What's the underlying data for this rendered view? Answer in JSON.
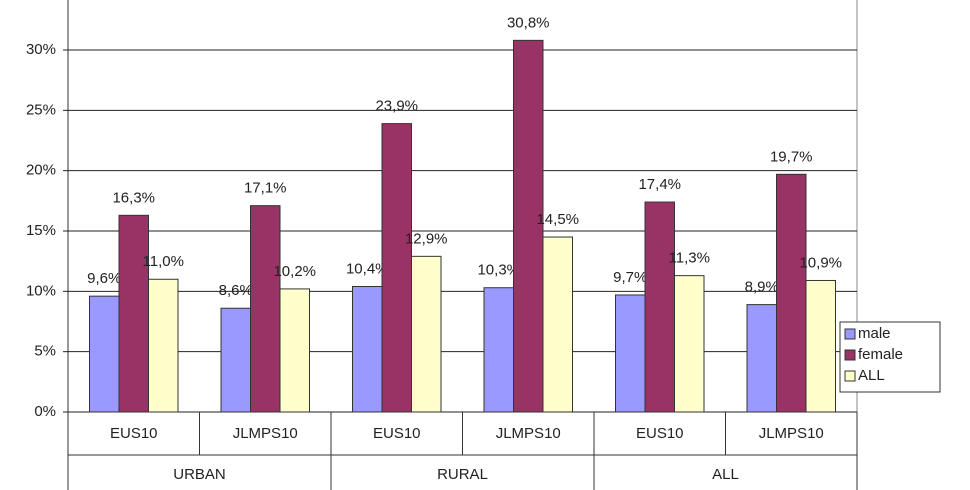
{
  "chart_data": {
    "type": "bar",
    "categories": [
      "EUS10",
      "JLMPS10",
      "EUS10",
      "JLMPS10",
      "EUS10",
      "JLMPS10"
    ],
    "groups": [
      "URBAN",
      "RURAL",
      "ALL"
    ],
    "series": [
      {
        "name": "male",
        "color": "#9999ff",
        "values": [
          9.6,
          8.6,
          10.4,
          10.3,
          9.7,
          8.9
        ],
        "value_labels": [
          "9,6%",
          "8,6%",
          "10,4%",
          "10,3%",
          "9,7%",
          "8,9%"
        ]
      },
      {
        "name": "female",
        "color": "#993366",
        "values": [
          16.3,
          17.1,
          23.9,
          30.8,
          17.4,
          19.7
        ],
        "value_labels": [
          "16,3%",
          "17,1%",
          "23,9%",
          "30,8%",
          "17,4%",
          "19,7%"
        ]
      },
      {
        "name": "ALL",
        "color": "#ffffcc",
        "values": [
          11.0,
          10.2,
          12.9,
          14.5,
          11.3,
          10.9
        ],
        "value_labels": [
          "11,0%",
          "10,2%",
          "12,9%",
          "14,5%",
          "11,3%",
          "10,9%"
        ]
      }
    ],
    "ylim": [
      0,
      30
    ],
    "yticks": [
      {
        "value": 0,
        "label": "0%"
      },
      {
        "value": 5,
        "label": "5%"
      },
      {
        "value": 10,
        "label": "10%"
      },
      {
        "value": 15,
        "label": "15%"
      },
      {
        "value": 20,
        "label": "20%"
      },
      {
        "value": 25,
        "label": "25%"
      },
      {
        "value": 30,
        "label": "30%"
      }
    ],
    "grid": true,
    "legend": "right"
  }
}
